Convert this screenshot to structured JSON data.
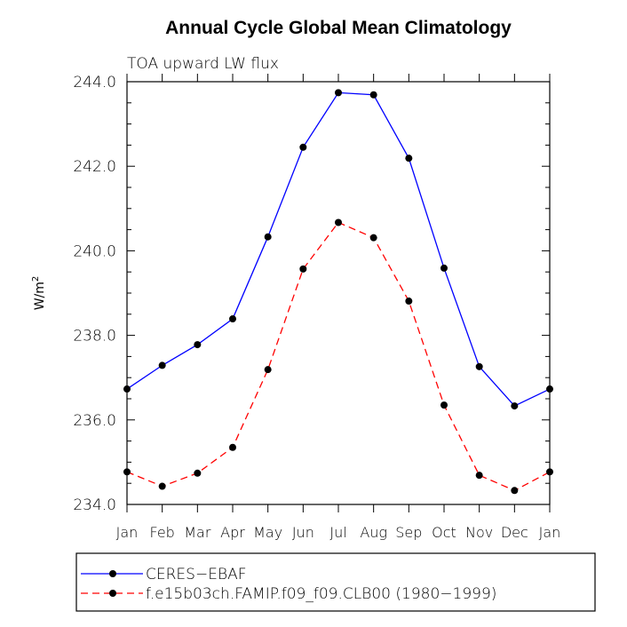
{
  "chart_data": {
    "type": "line",
    "title": "Annual Cycle Global Mean Climatology",
    "subtitle": "TOA upward LW flux",
    "ylabel": "W/m",
    "ylabel_superscript": "2",
    "ylim": [
      234.0,
      244.0
    ],
    "yticks": [
      "234.0",
      "236.0",
      "238.0",
      "240.0",
      "242.0",
      "244.0"
    ],
    "categories": [
      "Jan",
      "Feb",
      "Mar",
      "Apr",
      "May",
      "Jun",
      "Jul",
      "Aug",
      "Sep",
      "Oct",
      "Nov",
      "Dec",
      "Jan"
    ],
    "grid": false,
    "legend_position": "bottom",
    "series": [
      {
        "name": "CERES−EBAF",
        "color": "#0000ff",
        "line_style": "solid",
        "marker": "filled-circle",
        "values": [
          236.73,
          237.29,
          237.78,
          238.39,
          240.33,
          242.45,
          243.74,
          243.69,
          242.19,
          239.59,
          237.26,
          236.33,
          236.73
        ]
      },
      {
        "name": "f.e15b03ch.FAMIP.f09_f09.CLB00 (1980−1999)",
        "color": "#ff0000",
        "line_style": "dashed",
        "marker": "filled-circle",
        "values": [
          234.77,
          234.43,
          234.74,
          235.35,
          237.19,
          239.57,
          240.67,
          240.31,
          238.81,
          236.35,
          234.69,
          234.33,
          234.77
        ]
      }
    ]
  }
}
